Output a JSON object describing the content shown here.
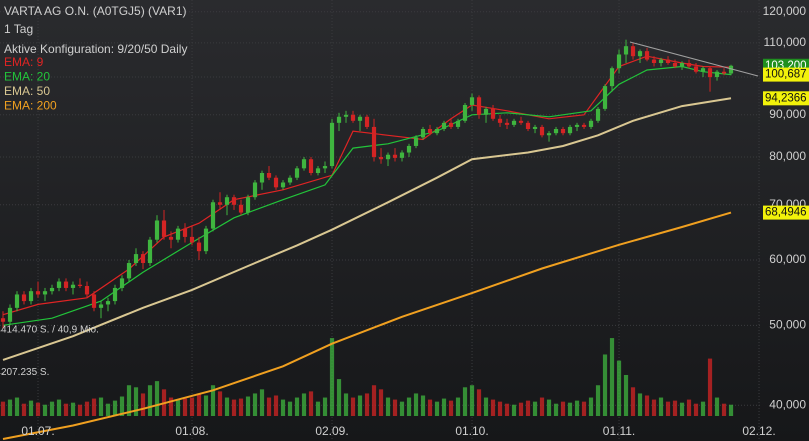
{
  "chart_data": {
    "type": "candlestick",
    "title": "VARTA AG O.N. (A0TGJ5) (VAR1)",
    "subtitle": "1 Tag",
    "configuration": "Aktive Konfiguration: 9/20/50 Daily",
    "log_scale": true,
    "grid": true,
    "up_color": "#3fb53f",
    "down_color": "#d42424",
    "ylim": [
      36.2,
      124
    ],
    "yticks": [
      {
        "value": 40,
        "label": "40,000"
      },
      {
        "value": 50,
        "label": "50,000"
      },
      {
        "value": 60,
        "label": "60,000"
      },
      {
        "value": 70,
        "label": "70,000"
      },
      {
        "value": 80,
        "label": "80,000"
      },
      {
        "value": 90,
        "label": "90,000"
      },
      {
        "value": 100,
        "label": "100,000"
      },
      {
        "value": 110,
        "label": "110,000"
      },
      {
        "value": 120,
        "label": "120,000"
      }
    ],
    "xlim": [
      -0.43,
      108.14
    ],
    "xticks": [
      {
        "value": 5,
        "label": "01.07."
      },
      {
        "value": 27,
        "label": "01.08."
      },
      {
        "value": 47,
        "label": "02.09."
      },
      {
        "value": 67,
        "label": "01.10."
      },
      {
        "value": 88,
        "label": "01.11."
      },
      {
        "value": 108,
        "label": "02.12."
      }
    ],
    "candles": [
      [
        51,
        52,
        49.5,
        50.5
      ],
      [
        50.5,
        53,
        50,
        52.5
      ],
      [
        52.5,
        55,
        52,
        54.5
      ],
      [
        54.5,
        55,
        53,
        53.5
      ],
      [
        53.5,
        55.5,
        53,
        55
      ],
      [
        55,
        56.5,
        54,
        54.5
      ],
      [
        54.5,
        55.5,
        53.5,
        55
      ],
      [
        55,
        56,
        54.5,
        55.5
      ],
      [
        55.5,
        57,
        55,
        56.5
      ],
      [
        56.5,
        57,
        55,
        55.5
      ],
      [
        55.5,
        56.5,
        54.5,
        56
      ],
      [
        56,
        57,
        55.5,
        55.8
      ],
      [
        55.8,
        56.5,
        54,
        54.5
      ],
      [
        54.5,
        55,
        52,
        52.5
      ],
      [
        52.5,
        53.5,
        51,
        53
      ],
      [
        53,
        54,
        52,
        53.5
      ],
      [
        53.5,
        56,
        53,
        55.5
      ],
      [
        55.5,
        57.5,
        55,
        57
      ],
      [
        57,
        60,
        56.5,
        59.5
      ],
      [
        59.5,
        62,
        59,
        61
      ],
      [
        61,
        61.5,
        58.5,
        59.5
      ],
      [
        59.5,
        64,
        59,
        63.5
      ],
      [
        63.5,
        68,
        63,
        67
      ],
      [
        67,
        69,
        63.5,
        64
      ],
      [
        64,
        65,
        62,
        63.5
      ],
      [
        63.5,
        66,
        63,
        65.5
      ],
      [
        65.5,
        66.5,
        63,
        64
      ],
      [
        64,
        66,
        62.5,
        63
      ],
      [
        63,
        64,
        60,
        61.5
      ],
      [
        61.5,
        66,
        61,
        65.5
      ],
      [
        65.5,
        71,
        65,
        70.5
      ],
      [
        70.5,
        72.5,
        69,
        70
      ],
      [
        70,
        72,
        68,
        71.5
      ],
      [
        71.5,
        72,
        69,
        70
      ],
      [
        70,
        71,
        68,
        68.5
      ],
      [
        68.5,
        72,
        68,
        71.5
      ],
      [
        71.5,
        75,
        71,
        74.5
      ],
      [
        74.5,
        77,
        73,
        76.5
      ],
      [
        76.5,
        78,
        75,
        75.5
      ],
      [
        75.5,
        76,
        73,
        73.5
      ],
      [
        73.5,
        75,
        73,
        74.5
      ],
      [
        74.5,
        76,
        74,
        75.5
      ],
      [
        75.5,
        78,
        75,
        77.5
      ],
      [
        77.5,
        80,
        77,
        79.5
      ],
      [
        79.5,
        80,
        76,
        76.5
      ],
      [
        76.5,
        78,
        76,
        77.5
      ],
      [
        77.5,
        79,
        76.5,
        78
      ],
      [
        78,
        89,
        77.5,
        88
      ],
      [
        88,
        90.5,
        86,
        89.5
      ],
      [
        89.5,
        91,
        88,
        90
      ],
      [
        90,
        91,
        88,
        88.5
      ],
      [
        88.5,
        90,
        86,
        89.5
      ],
      [
        89.5,
        90,
        86.5,
        87
      ],
      [
        87,
        89,
        79,
        80
      ],
      [
        80,
        82,
        78.5,
        79.5
      ],
      [
        79.5,
        81,
        78,
        80.5
      ],
      [
        80.5,
        82,
        79,
        79.8
      ],
      [
        79.8,
        81.5,
        79,
        81
      ],
      [
        81,
        83,
        80,
        82.5
      ],
      [
        82.5,
        85,
        82,
        84.5
      ],
      [
        84.5,
        87,
        84,
        86.5
      ],
      [
        86.5,
        87.5,
        85,
        85.5
      ],
      [
        85.5,
        87,
        85,
        86.5
      ],
      [
        86.5,
        88.5,
        86,
        88
      ],
      [
        88,
        89,
        86.5,
        87
      ],
      [
        87,
        89,
        86.5,
        88.5
      ],
      [
        88.5,
        93,
        88,
        92.5
      ],
      [
        92.5,
        95.5,
        91,
        94.5
      ],
      [
        94.5,
        95,
        89,
        90
      ],
      [
        90,
        92,
        88,
        91.5
      ],
      [
        91.5,
        92.5,
        88.5,
        89
      ],
      [
        89,
        90,
        87,
        88
      ],
      [
        88,
        89,
        86.5,
        87.5
      ],
      [
        87.5,
        89,
        87,
        88.5
      ],
      [
        88.5,
        89.5,
        87.5,
        88
      ],
      [
        88,
        88.5,
        86,
        86.5
      ],
      [
        86.5,
        87.5,
        85.5,
        87
      ],
      [
        87,
        87.5,
        84.5,
        85
      ],
      [
        85,
        86,
        83.5,
        85.5
      ],
      [
        85.5,
        87,
        85,
        86.5
      ],
      [
        86.5,
        87,
        85,
        85.5
      ],
      [
        85.5,
        87.5,
        85,
        87
      ],
      [
        87,
        88,
        86,
        87.5
      ],
      [
        87.5,
        88,
        86.5,
        87
      ],
      [
        87,
        89,
        86.5,
        88.5
      ],
      [
        88.5,
        92,
        88,
        91.5
      ],
      [
        91.5,
        98,
        91,
        97.5
      ],
      [
        97.5,
        103,
        96,
        102.5
      ],
      [
        102.5,
        108,
        101,
        106.5
      ],
      [
        106.5,
        111,
        104,
        109
      ],
      [
        109,
        110,
        105,
        106
      ],
      [
        106,
        108,
        104,
        107.5
      ],
      [
        107.5,
        108.5,
        104.5,
        105
      ],
      [
        105,
        106,
        103,
        104
      ],
      [
        104,
        105.5,
        103,
        105
      ],
      [
        105,
        106,
        103.5,
        104
      ],
      [
        104,
        105,
        102.5,
        103
      ],
      [
        103,
        104.5,
        102,
        104
      ],
      [
        104,
        105,
        102.5,
        103
      ],
      [
        103,
        104,
        101,
        101.5
      ],
      [
        101.5,
        103,
        100,
        102.5
      ],
      [
        102.5,
        103,
        96,
        100
      ],
      [
        100,
        102,
        99,
        101.5
      ],
      [
        101.5,
        102.5,
        100.5,
        101
      ],
      [
        101,
        103.5,
        100.5,
        103.2
      ]
    ],
    "series": [
      {
        "name": "EMA: 9",
        "color": "#e02424",
        "x": [
          0,
          5,
          12,
          18,
          23,
          28,
          33,
          40,
          47,
          50,
          55,
          60,
          64,
          67,
          72,
          78,
          83,
          88,
          92,
          97,
          100,
          104
        ],
        "values": [
          51.5,
          53,
          54,
          58.5,
          64,
          66.5,
          71,
          73,
          76,
          86,
          85,
          84,
          89,
          92.5,
          91,
          89,
          90,
          103,
          106,
          104,
          103,
          102.8
        ]
      },
      {
        "name": "EMA: 20",
        "color": "#22c43a",
        "x": [
          0,
          7,
          14,
          20,
          27,
          33,
          40,
          46,
          50,
          55,
          62,
          67,
          72,
          78,
          84,
          88,
          92,
          97,
          100,
          104
        ],
        "values": [
          50,
          51,
          53.5,
          58,
          63,
          67.5,
          71,
          74,
          82,
          83,
          86,
          90,
          90.5,
          89.5,
          91,
          98,
          102,
          103,
          101.5,
          100.687
        ]
      },
      {
        "name": "EMA: 50",
        "color": "#d9c792",
        "x": [
          0,
          10,
          20,
          27,
          35,
          42,
          47,
          55,
          62,
          67,
          75,
          80,
          85,
          90,
          97,
          104
        ],
        "values": [
          45.4,
          48.5,
          52.5,
          55.2,
          59,
          62.5,
          65.3,
          70.5,
          75.5,
          79.5,
          81,
          82.5,
          85,
          88.5,
          92.2,
          94.2366
        ]
      },
      {
        "name": "EMA: 200",
        "color": "#f0a020",
        "x": [
          0,
          10,
          20,
          30,
          40,
          47,
          57,
          67,
          77,
          88,
          97,
          104
        ],
        "values": [
          36.4,
          37.8,
          39.6,
          41.7,
          44.6,
          47.5,
          51.2,
          54.7,
          58.6,
          62.6,
          65.8,
          68.4946
        ]
      }
    ],
    "last_values": [
      {
        "value": 103.2,
        "label": "103,200",
        "color": "#1f8f1f"
      },
      {
        "value": 100.687,
        "label": "100,687",
        "color": "#f2f20a"
      },
      {
        "value": 94.2366,
        "label": "94,2366",
        "color": "#f2f20a"
      },
      {
        "value": 68.4946,
        "label": "68,4946",
        "color": "#f2f20a"
      }
    ],
    "volume": {
      "ylim": [
        0,
        414470
      ],
      "yticks": [
        {
          "value": 414470,
          "label": "414.470 S. / 40,9 Mio."
        },
        {
          "value": 207235,
          "label": "207.235 S."
        }
      ],
      "values": [
        70000,
        80000,
        90000,
        60000,
        75000,
        65000,
        55000,
        70000,
        80000,
        60000,
        65000,
        55000,
        70000,
        85000,
        90000,
        60000,
        75000,
        95000,
        150000,
        140000,
        110000,
        150000,
        170000,
        130000,
        90000,
        80000,
        85000,
        90000,
        110000,
        100000,
        150000,
        120000,
        90000,
        80000,
        85000,
        95000,
        110000,
        130000,
        90000,
        100000,
        80000,
        70000,
        90000,
        110000,
        120000,
        70000,
        90000,
        380000,
        180000,
        110000,
        90000,
        100000,
        110000,
        150000,
        130000,
        90000,
        80000,
        70000,
        90000,
        110000,
        100000,
        80000,
        70000,
        85000,
        75000,
        90000,
        140000,
        150000,
        130000,
        90000,
        80000,
        70000,
        60000,
        55000,
        65000,
        75000,
        70000,
        90000,
        80000,
        60000,
        70000,
        65000,
        75000,
        70000,
        90000,
        150000,
        300000,
        380000,
        270000,
        200000,
        140000,
        110000,
        100000,
        80000,
        90000,
        70000,
        75000,
        65000,
        80000,
        60000,
        70000,
        280000,
        90000,
        60000,
        55000
      ]
    }
  }
}
